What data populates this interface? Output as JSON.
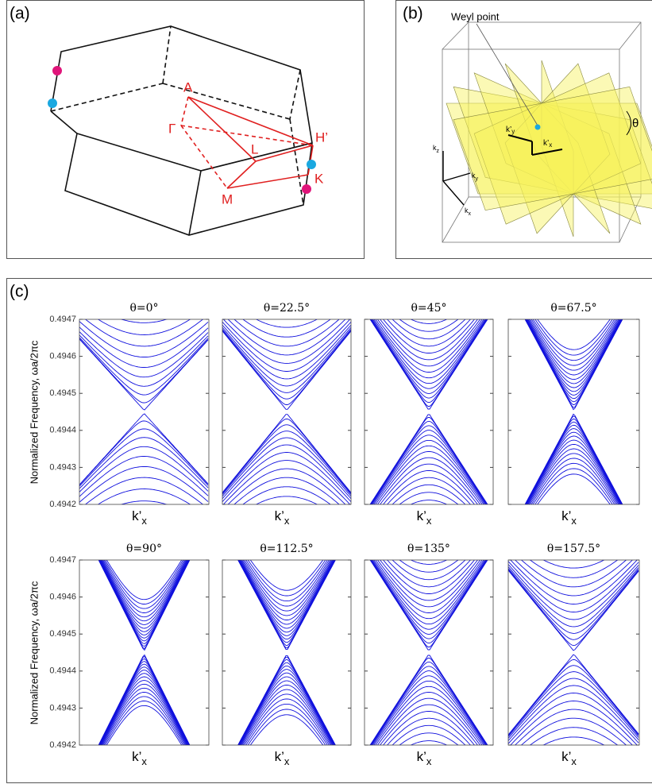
{
  "panel_a": {
    "label": "(a)",
    "points": {
      "A": "A",
      "Gamma": "Γ",
      "L": "L",
      "H": "H’",
      "K": "K",
      "M": "M"
    }
  },
  "panel_b": {
    "label": "(b)",
    "annotation": "Weyl point",
    "theta": "θ",
    "axes": [
      {
        "main": "k",
        "sub": "z"
      },
      {
        "main": "k",
        "sub": "y"
      },
      {
        "main": "k",
        "sub": "x"
      }
    ],
    "rotated_axes": [
      {
        "main": "k’",
        "sub": "y"
      },
      {
        "main": "k’",
        "sub": "x"
      }
    ]
  },
  "panel_c": {
    "label": "(c)",
    "ylabel": "Normalized Frequency, ωa/2πc",
    "xlabel": {
      "main": "k’",
      "sub": "x"
    },
    "ylim": [
      0.4942,
      0.4947
    ],
    "yticks": [
      0.4942,
      0.4943,
      0.4944,
      0.4945,
      0.4946,
      0.4947
    ],
    "subplots": [
      {
        "title": "θ=0°"
      },
      {
        "title": "θ=22.5°"
      },
      {
        "title": "θ=45°"
      },
      {
        "title": "θ=67.5°"
      },
      {
        "title": "θ=90°"
      },
      {
        "title": "θ=112.5°"
      },
      {
        "title": "θ=135°"
      },
      {
        "title": "θ=157.5°"
      }
    ]
  }
}
